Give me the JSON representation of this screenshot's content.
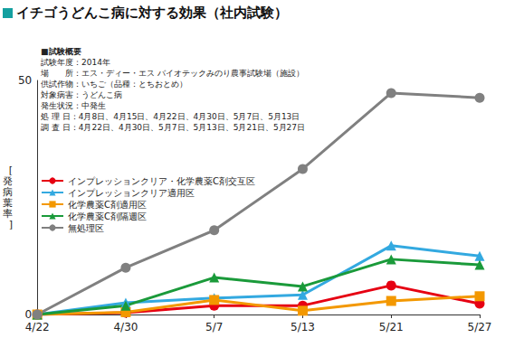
{
  "chart_data": {
    "type": "line",
    "title": "イチゴうどんこ病に対する効果（社内試験）",
    "annotations": [
      "■試験概要",
      "試験年度：2014年",
      "場　　所：エス・ディー・エス バイオテックみのり農事試験場（施設）",
      "供試作物：いちご（品種：とちおとめ）",
      "対象病害：うどんこ病",
      "発生状況：中発生",
      "処 理 日：4月8日、4月15日、4月22日、4月30日、5月7日、5月13日",
      "調 査 日：4月22日、4月30日、5月7日、5月13日、5月21日、5月27日"
    ],
    "ylabel": "[発病葉率]",
    "categories": [
      "4/22",
      "4/30",
      "5/7",
      "5/13",
      "5/21",
      "5/27"
    ],
    "series": [
      {
        "name": "インプレッションクリア・化学農薬C剤交互区",
        "color": "#e60012",
        "marker": "circle",
        "values": [
          0,
          0.4,
          1.9,
          1.9,
          6.2,
          2.3
        ]
      },
      {
        "name": "インプレッションクリア適用区",
        "color": "#33a9e0",
        "marker": "triangle",
        "values": [
          0,
          2.5,
          3.5,
          4.2,
          14.7,
          12.5
        ]
      },
      {
        "name": "化学農薬C剤適用区",
        "color": "#f39800",
        "marker": "square",
        "values": [
          0,
          0.5,
          3.1,
          0.8,
          2.9,
          3.9
        ]
      },
      {
        "name": "化学農薬C剤隔週区",
        "color": "#1a9a3a",
        "marker": "triangle",
        "values": [
          0,
          1.9,
          7.9,
          6.0,
          11.8,
          10.6
        ]
      },
      {
        "name": "無処理区",
        "color": "#808080",
        "marker": "circle",
        "values": [
          0,
          10.0,
          18.0,
          31.1,
          47.3,
          46.3
        ]
      }
    ],
    "ylim": [
      0,
      50
    ],
    "yticks": [
      0,
      50
    ],
    "grid": false,
    "legend": "left"
  }
}
